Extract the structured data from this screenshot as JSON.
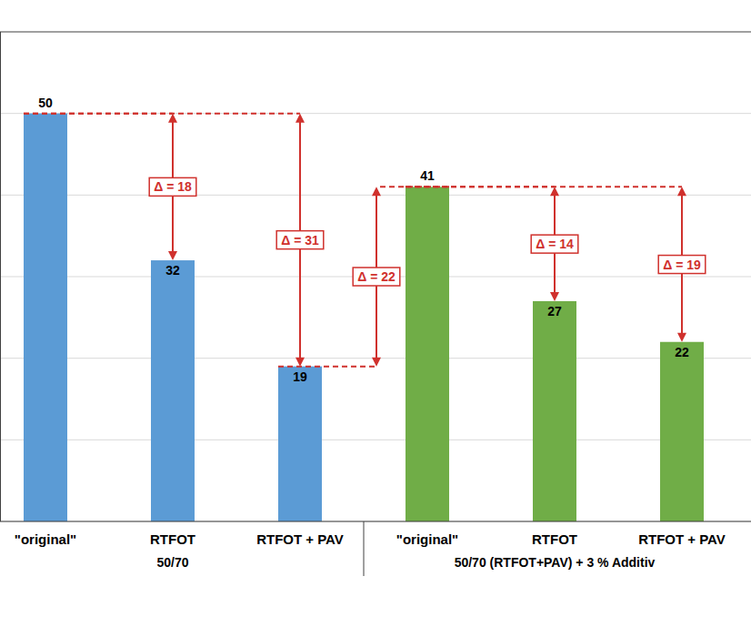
{
  "chart_data": {
    "type": "bar",
    "categories": [
      "\"original\"",
      "RTFOT",
      "RTFOT + PAV",
      "\"original\"",
      "RTFOT",
      "RTFOT + PAV"
    ],
    "series": [
      {
        "name": "50/70",
        "color": "#5b9bd5",
        "values": [
          50,
          32,
          19,
          null,
          null,
          null
        ]
      },
      {
        "name": "50/70 (RTFOT+PAV) + 3 % Additiv",
        "color": "#70ad47",
        "values": [
          null,
          null,
          null,
          41,
          27,
          22
        ]
      }
    ],
    "ylim": [
      0,
      60
    ],
    "yticks": [
      0,
      10,
      20,
      30,
      40,
      50
    ],
    "grid": true,
    "tick_labels": "x",
    "data_labels": true,
    "annotations": [
      {
        "label": "Δ = 18",
        "from": 50,
        "to": 32,
        "at": 1
      },
      {
        "label": "Δ = 31",
        "from": 50,
        "to": 19,
        "at": 2
      },
      {
        "label": "Δ = 22",
        "from": 19,
        "to": 41,
        "at": 2.6
      },
      {
        "label": "Δ = 14",
        "from": 41,
        "to": 27,
        "at": 4
      },
      {
        "label": "Δ = 19",
        "from": 41,
        "to": 22,
        "at": 5
      }
    ]
  }
}
